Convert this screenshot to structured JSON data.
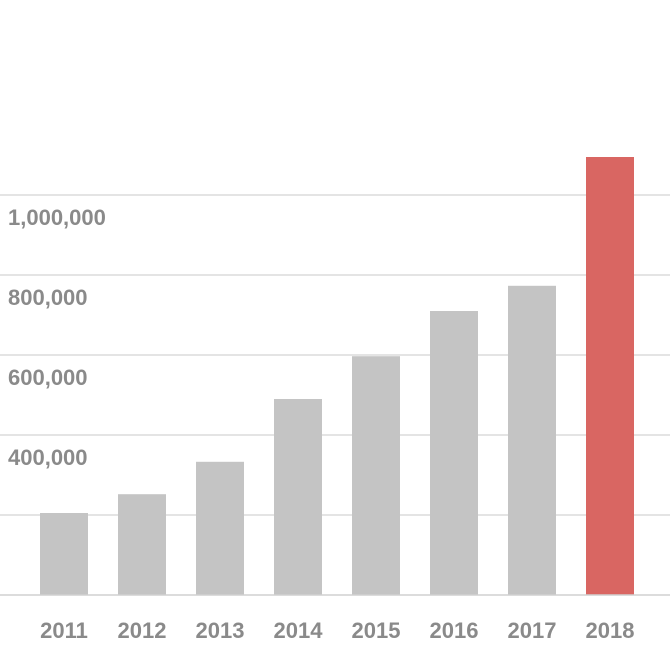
{
  "chart_data": {
    "type": "bar",
    "title": "",
    "xlabel": "",
    "ylabel": "",
    "categories": [
      "2011",
      "2012",
      "2013",
      "2014",
      "2015",
      "2016",
      "2017",
      "2018"
    ],
    "values": [
      205000,
      252000,
      333000,
      490000,
      597000,
      710000,
      773000,
      1095000
    ],
    "ylim": [
      0,
      1100000
    ],
    "yticks": [
      400000,
      600000,
      800000,
      1000000
    ],
    "ytick_labels": [
      "400,000",
      "600,000",
      "800,000",
      "1,000,000"
    ],
    "gridlines": [
      200000,
      400000,
      600000,
      800000,
      1000000
    ],
    "grid": true,
    "legend": "none",
    "colors": {
      "default_bar": "#c4c4c4",
      "highlight_bar": "#d96662",
      "gridline": "#dcdcdc",
      "tick_label": "#8a8a8a"
    },
    "highlight_category": "2018"
  }
}
